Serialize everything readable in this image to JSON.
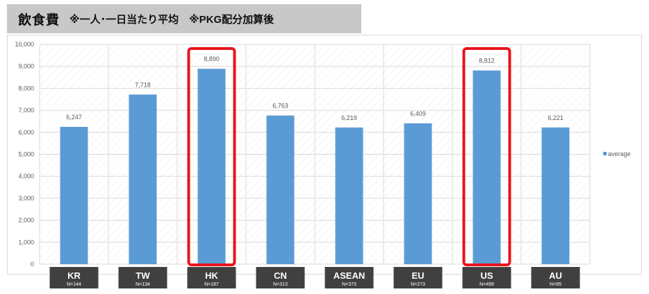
{
  "title": {
    "main": "飲食費",
    "sub": "※一人･一日当たり平均　※PKG配分加算後"
  },
  "colors": {
    "bar": "#5b9bd5",
    "highlight": "#e8131c",
    "category_box": "#404040"
  },
  "chart_data": {
    "type": "bar",
    "categories": [
      "KR",
      "TW",
      "HK",
      "CN",
      "ASEAN",
      "EU",
      "US",
      "AU"
    ],
    "sample_sizes": [
      "N=144",
      "N=134",
      "N=187",
      "N=313",
      "N=373",
      "N=273",
      "N=499",
      "N=95"
    ],
    "series": [
      {
        "name": "average",
        "values": [
          6247,
          7718,
          8890,
          6763,
          6219,
          6409,
          8812,
          6221
        ],
        "labels": [
          "6,247",
          "7,718",
          "8,890",
          "6,763",
          "6,219",
          "6,409",
          "8,812",
          "6,221"
        ]
      }
    ],
    "ylim": [
      0,
      10000
    ],
    "yticks": [
      0,
      1000,
      2000,
      3000,
      4000,
      5000,
      6000,
      7000,
      8000,
      9000,
      10000
    ],
    "ytick_labels": [
      "0",
      "1,000",
      "2,000",
      "3,000",
      "4,000",
      "5,000",
      "6,000",
      "7,000",
      "8,000",
      "9,000",
      "10,000"
    ],
    "highlighted": [
      "HK",
      "US"
    ],
    "legend": "right",
    "grid": true
  }
}
